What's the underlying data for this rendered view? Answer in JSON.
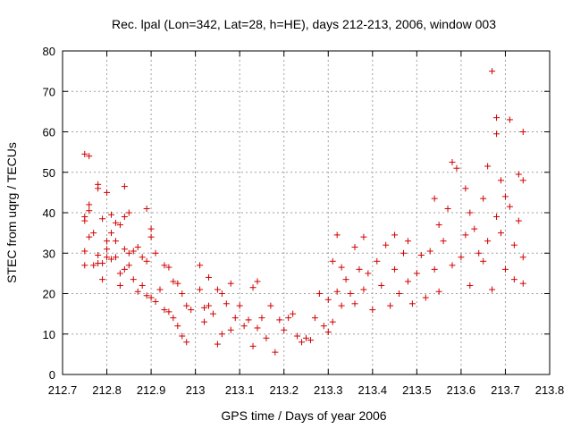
{
  "chart_data": {
    "type": "scatter",
    "title": "Rec. lpal (Lon=342, Lat=28, h=HE), days 212-213, 2006, window 003",
    "xlabel": "GPS time / Days of year 2006",
    "ylabel": "STEC from uqrg / TECUs",
    "xlim": [
      212.7,
      213.8
    ],
    "ylim": [
      0,
      80
    ],
    "xticks": [
      "212.7",
      "212.8",
      "212.9",
      "213",
      "213.1",
      "213.2",
      "213.3",
      "213.4",
      "213.5",
      "213.6",
      "213.7",
      "213.8"
    ],
    "yticks": [
      "0",
      "10",
      "20",
      "30",
      "40",
      "50",
      "60",
      "70",
      "80"
    ],
    "grid": true,
    "marker": "+",
    "color": "#d00000",
    "points": [
      [
        212.75,
        54.5
      ],
      [
        212.76,
        54.0
      ],
      [
        212.75,
        39.0
      ],
      [
        212.75,
        38.0
      ],
      [
        212.75,
        30.5
      ],
      [
        212.75,
        27.0
      ],
      [
        212.76,
        42.0
      ],
      [
        212.76,
        40.5
      ],
      [
        212.76,
        34.0
      ],
      [
        212.77,
        35.0
      ],
      [
        212.77,
        27.0
      ],
      [
        212.78,
        47.0
      ],
      [
        212.78,
        46.0
      ],
      [
        212.78,
        29.5
      ],
      [
        212.78,
        27.5
      ],
      [
        212.79,
        38.5
      ],
      [
        212.79,
        27.5
      ],
      [
        212.79,
        23.5
      ],
      [
        212.8,
        45.0
      ],
      [
        212.8,
        33.0
      ],
      [
        212.8,
        31.0
      ],
      [
        212.8,
        29.0
      ],
      [
        212.81,
        39.5
      ],
      [
        212.81,
        35.0
      ],
      [
        212.81,
        28.5
      ],
      [
        212.82,
        37.5
      ],
      [
        212.82,
        33.0
      ],
      [
        212.82,
        29.0
      ],
      [
        212.83,
        37.0
      ],
      [
        212.83,
        25.0
      ],
      [
        212.83,
        22.0
      ],
      [
        212.84,
        46.5
      ],
      [
        212.84,
        39.0
      ],
      [
        212.84,
        31.0
      ],
      [
        212.84,
        26.0
      ],
      [
        212.85,
        40.0
      ],
      [
        212.85,
        30.0
      ],
      [
        212.85,
        27.0
      ],
      [
        212.86,
        30.5
      ],
      [
        212.86,
        23.5
      ],
      [
        212.87,
        31.5
      ],
      [
        212.87,
        20.5
      ],
      [
        212.88,
        29.0
      ],
      [
        212.88,
        22.0
      ],
      [
        212.89,
        41.0
      ],
      [
        212.89,
        28.0
      ],
      [
        212.89,
        19.5
      ],
      [
        212.9,
        36.0
      ],
      [
        212.9,
        34.0
      ],
      [
        212.9,
        19.0
      ],
      [
        212.91,
        30.0
      ],
      [
        212.91,
        18.0
      ],
      [
        212.92,
        21.0
      ],
      [
        212.93,
        27.0
      ],
      [
        212.93,
        16.0
      ],
      [
        212.94,
        26.5
      ],
      [
        212.94,
        15.5
      ],
      [
        212.95,
        23.0
      ],
      [
        212.95,
        14.0
      ],
      [
        212.96,
        22.5
      ],
      [
        212.96,
        12.0
      ],
      [
        212.97,
        20.0
      ],
      [
        212.97,
        9.5
      ],
      [
        212.98,
        17.0
      ],
      [
        212.98,
        8.0
      ],
      [
        212.99,
        16.0
      ],
      [
        213.01,
        27.0
      ],
      [
        213.01,
        21.0
      ],
      [
        213.02,
        16.5
      ],
      [
        213.02,
        13.0
      ],
      [
        213.03,
        24.0
      ],
      [
        213.03,
        17.0
      ],
      [
        213.04,
        15.0
      ],
      [
        213.05,
        21.0
      ],
      [
        213.05,
        7.5
      ],
      [
        213.06,
        20.0
      ],
      [
        213.06,
        10.0
      ],
      [
        213.07,
        17.5
      ],
      [
        213.08,
        22.5
      ],
      [
        213.08,
        11.0
      ],
      [
        213.09,
        14.0
      ],
      [
        213.1,
        17.0
      ],
      [
        213.11,
        12.0
      ],
      [
        213.12,
        13.5
      ],
      [
        213.13,
        21.5
      ],
      [
        213.13,
        7.0
      ],
      [
        213.14,
        23.0
      ],
      [
        213.14,
        11.5
      ],
      [
        213.15,
        14.0
      ],
      [
        213.16,
        9.0
      ],
      [
        213.17,
        17.0
      ],
      [
        213.18,
        5.5
      ],
      [
        213.19,
        13.5
      ],
      [
        213.2,
        11.0
      ],
      [
        213.21,
        14.0
      ],
      [
        213.22,
        15.0
      ],
      [
        213.23,
        9.5
      ],
      [
        213.24,
        8.0
      ],
      [
        213.25,
        9.0
      ],
      [
        213.26,
        8.5
      ],
      [
        213.27,
        14.0
      ],
      [
        213.28,
        20.0
      ],
      [
        213.29,
        12.0
      ],
      [
        213.3,
        10.5
      ],
      [
        213.3,
        18.5
      ],
      [
        213.31,
        28.0
      ],
      [
        213.31,
        13.0
      ],
      [
        213.32,
        34.5
      ],
      [
        213.32,
        20.5
      ],
      [
        213.33,
        26.5
      ],
      [
        213.33,
        17.0
      ],
      [
        213.34,
        23.5
      ],
      [
        213.35,
        20.0
      ],
      [
        213.36,
        31.5
      ],
      [
        213.36,
        17.5
      ],
      [
        213.37,
        26.0
      ],
      [
        213.38,
        34.0
      ],
      [
        213.38,
        21.0
      ],
      [
        213.39,
        25.0
      ],
      [
        213.4,
        16.0
      ],
      [
        213.41,
        28.0
      ],
      [
        213.42,
        22.0
      ],
      [
        213.43,
        32.0
      ],
      [
        213.44,
        17.0
      ],
      [
        213.45,
        34.5
      ],
      [
        213.45,
        26.0
      ],
      [
        213.46,
        20.0
      ],
      [
        213.47,
        30.0
      ],
      [
        213.48,
        33.0
      ],
      [
        213.48,
        23.0
      ],
      [
        213.49,
        17.5
      ],
      [
        213.5,
        25.0
      ],
      [
        213.51,
        29.5
      ],
      [
        213.52,
        19.0
      ],
      [
        213.53,
        30.5
      ],
      [
        213.54,
        43.5
      ],
      [
        213.54,
        26.0
      ],
      [
        213.55,
        37.0
      ],
      [
        213.55,
        20.5
      ],
      [
        213.56,
        33.0
      ],
      [
        213.57,
        41.0
      ],
      [
        213.58,
        52.5
      ],
      [
        213.58,
        27.0
      ],
      [
        213.59,
        51.0
      ],
      [
        213.6,
        29.0
      ],
      [
        213.61,
        46.0
      ],
      [
        213.61,
        34.5
      ],
      [
        213.62,
        40.0
      ],
      [
        213.62,
        22.0
      ],
      [
        213.63,
        36.0
      ],
      [
        213.64,
        30.0
      ],
      [
        213.65,
        43.5
      ],
      [
        213.65,
        28.0
      ],
      [
        213.66,
        51.5
      ],
      [
        213.66,
        33.0
      ],
      [
        213.67,
        75.0
      ],
      [
        213.67,
        21.0
      ],
      [
        213.68,
        63.5
      ],
      [
        213.68,
        59.5
      ],
      [
        213.68,
        39.0
      ],
      [
        213.69,
        48.0
      ],
      [
        213.69,
        35.0
      ],
      [
        213.7,
        44.0
      ],
      [
        213.7,
        26.0
      ],
      [
        213.71,
        63.0
      ],
      [
        213.71,
        41.5
      ],
      [
        213.72,
        32.0
      ],
      [
        213.72,
        23.5
      ],
      [
        213.73,
        49.5
      ],
      [
        213.73,
        38.0
      ],
      [
        213.74,
        60.0
      ],
      [
        213.74,
        48.0
      ],
      [
        213.74,
        29.0
      ],
      [
        213.74,
        22.5
      ]
    ]
  }
}
